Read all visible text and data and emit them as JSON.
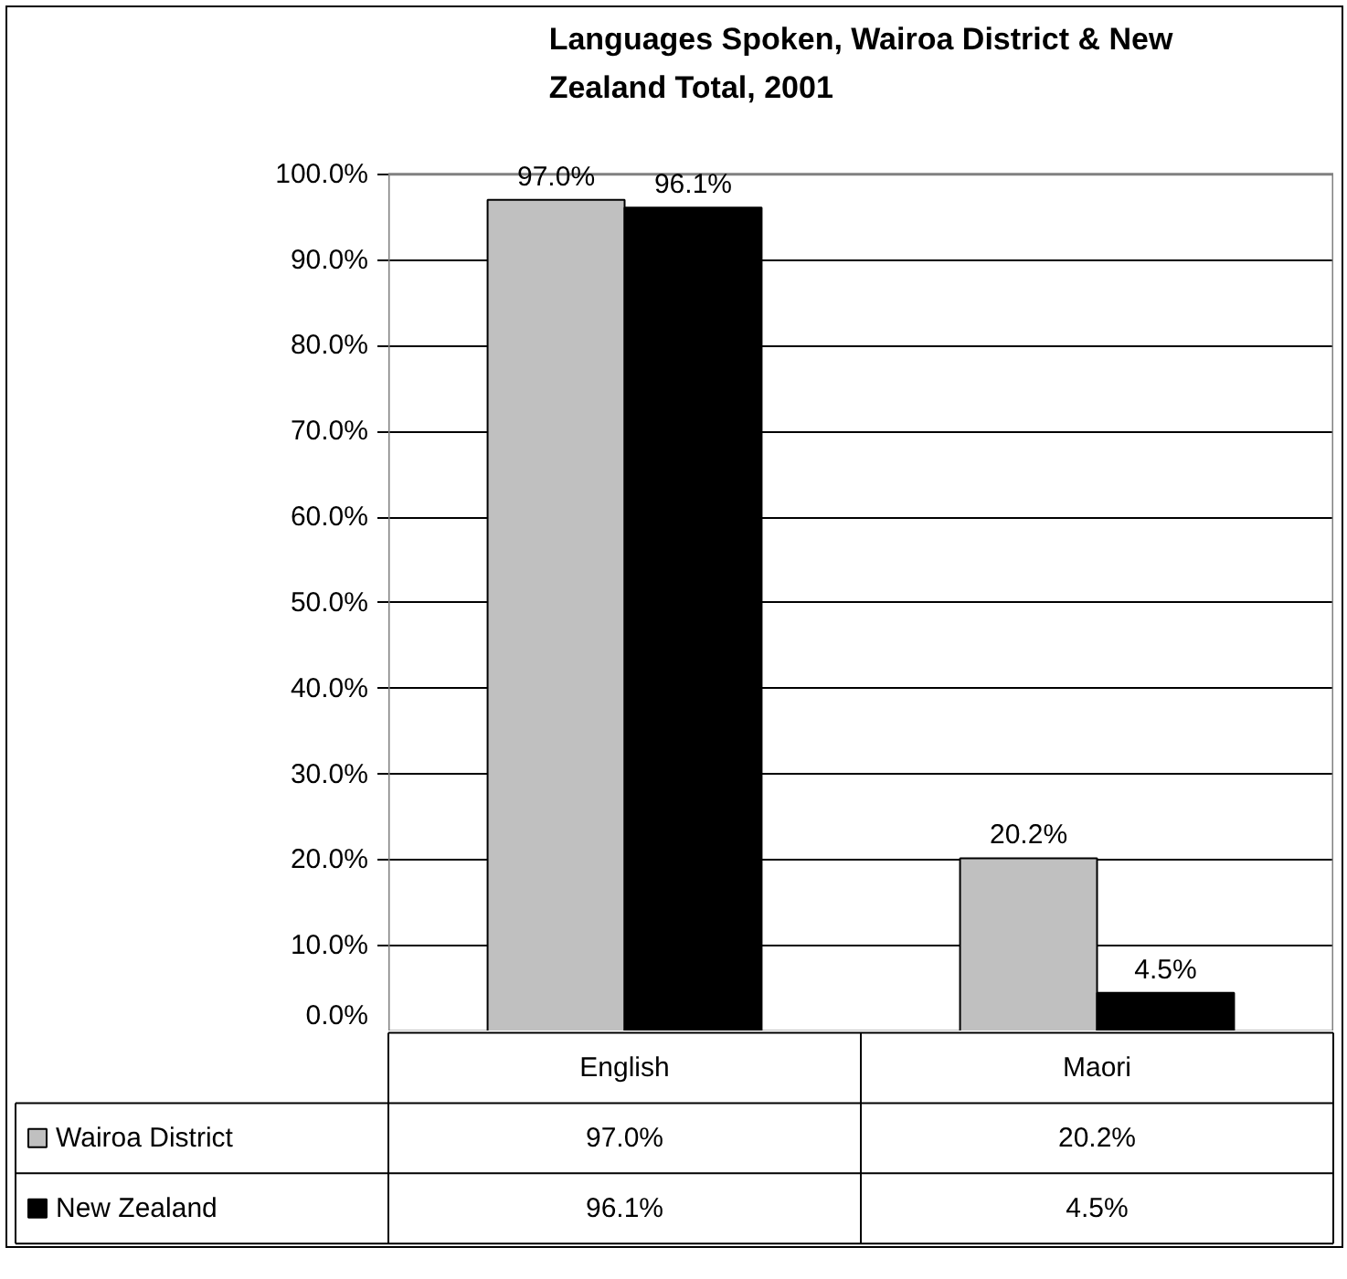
{
  "chart_data": {
    "type": "bar",
    "title": "Languages Spoken, Wairoa District & New Zealand Total, 2001",
    "categories": [
      "English",
      "Maori"
    ],
    "series": [
      {
        "name": "Wairoa District",
        "color": "#c0c0c0",
        "values": [
          97.0,
          20.2
        ],
        "value_labels": [
          "97.0%",
          "20.2%"
        ]
      },
      {
        "name": "New Zealand",
        "color": "#000000",
        "values": [
          96.1,
          4.5
        ],
        "value_labels": [
          "96.1%",
          "4.5%"
        ]
      }
    ],
    "ylim": [
      0,
      100
    ],
    "yticks": [
      {
        "value": 0,
        "label": "0.0%"
      },
      {
        "value": 10,
        "label": "10.0%"
      },
      {
        "value": 20,
        "label": "20.0%"
      },
      {
        "value": 30,
        "label": "30.0%"
      },
      {
        "value": 40,
        "label": "40.0%"
      },
      {
        "value": 50,
        "label": "50.0%"
      },
      {
        "value": 60,
        "label": "60.0%"
      },
      {
        "value": 70,
        "label": "70.0%"
      },
      {
        "value": 80,
        "label": "80.0%"
      },
      {
        "value": 90,
        "label": "90.0%"
      },
      {
        "value": 100,
        "label": "100.0%"
      }
    ],
    "grid": "y",
    "legend": "bottom",
    "data_labels": true
  }
}
